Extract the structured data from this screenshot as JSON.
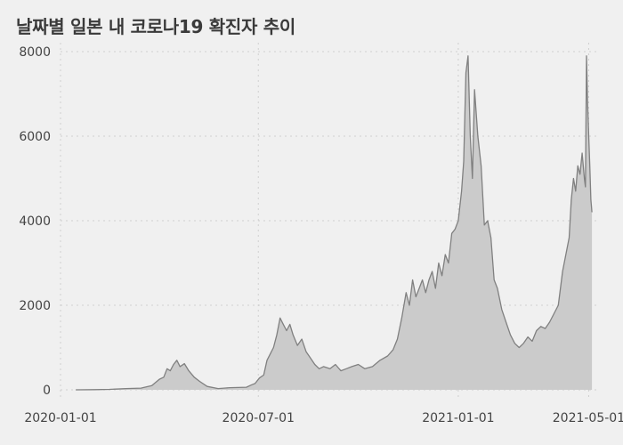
{
  "chart_data": {
    "type": "area",
    "title": "날짜별 일본 내 코로나19 확진자 추이",
    "xlabel": "",
    "ylabel": "",
    "x_range": [
      "2020-01-01",
      "2021-05-08"
    ],
    "ylim": [
      0,
      8000
    ],
    "y_ticks": [
      0,
      2000,
      4000,
      6000,
      8000
    ],
    "y_tick_labels": [
      "0",
      "2000",
      "4000",
      "6000",
      "8000"
    ],
    "x_ticks": [
      "2020-01-01",
      "2020-07-01",
      "2021-01-01",
      "2021-05-01"
    ],
    "x_tick_labels": [
      "2020-01-01",
      "2020-07-01",
      "2021-01-01",
      "2021-05-01"
    ],
    "grid": true,
    "colors": {
      "fill": "#cbcbcb",
      "line": "#808080",
      "grid": "#cfcfcf",
      "background": "#f0f0f0"
    },
    "series": [
      {
        "x": [
          "2020-01-15",
          "2020-02-01",
          "2020-02-15",
          "2020-03-01",
          "2020-03-15",
          "2020-03-25",
          "2020-04-01",
          "2020-04-05",
          "2020-04-08",
          "2020-04-11",
          "2020-04-14",
          "2020-04-17",
          "2020-04-20",
          "2020-04-24",
          "2020-04-28",
          "2020-05-03",
          "2020-05-08",
          "2020-05-15",
          "2020-05-25",
          "2020-06-05",
          "2020-06-20",
          "2020-06-25",
          "2020-06-28",
          "2020-07-02",
          "2020-07-06",
          "2020-07-09",
          "2020-07-12",
          "2020-07-15",
          "2020-07-18",
          "2020-07-21",
          "2020-07-24",
          "2020-07-27",
          "2020-07-30",
          "2020-08-02",
          "2020-08-06",
          "2020-08-10",
          "2020-08-14",
          "2020-08-18",
          "2020-08-22",
          "2020-08-26",
          "2020-08-30",
          "2020-09-05",
          "2020-09-10",
          "2020-09-15",
          "2020-09-20",
          "2020-09-25",
          "2020-10-01",
          "2020-10-07",
          "2020-10-14",
          "2020-10-21",
          "2020-10-28",
          "2020-11-02",
          "2020-11-06",
          "2020-11-10",
          "2020-11-14",
          "2020-11-17",
          "2020-11-20",
          "2020-11-23",
          "2020-11-26",
          "2020-11-29",
          "2020-12-02",
          "2020-12-05",
          "2020-12-08",
          "2020-12-11",
          "2020-12-14",
          "2020-12-17",
          "2020-12-20",
          "2020-12-23",
          "2020-12-26",
          "2020-12-29",
          "2021-01-01",
          "2021-01-04",
          "2021-01-06",
          "2021-01-08",
          "2021-01-10",
          "2021-01-12",
          "2021-01-14",
          "2021-01-16",
          "2021-01-19",
          "2021-01-22",
          "2021-01-25",
          "2021-01-28",
          "2021-01-31",
          "2021-02-03",
          "2021-02-06",
          "2021-02-10",
          "2021-02-14",
          "2021-02-18",
          "2021-02-22",
          "2021-02-26",
          "2021-03-02",
          "2021-03-06",
          "2021-03-10",
          "2021-03-14",
          "2021-03-18",
          "2021-03-22",
          "2021-03-26",
          "2021-03-30",
          "2021-04-03",
          "2021-04-07",
          "2021-04-10",
          "2021-04-13",
          "2021-04-15",
          "2021-04-17",
          "2021-04-19",
          "2021-04-21",
          "2021-04-23",
          "2021-04-25",
          "2021-04-27",
          "2021-04-28",
          "2021-04-29",
          "2021-04-30",
          "2021-05-01",
          "2021-05-02",
          "2021-05-03",
          "2021-05-04"
        ],
        "values": [
          0,
          5,
          10,
          30,
          40,
          100,
          250,
          300,
          500,
          450,
          600,
          700,
          550,
          620,
          450,
          300,
          200,
          80,
          30,
          50,
          60,
          120,
          150,
          280,
          350,
          700,
          850,
          1000,
          1300,
          1700,
          1550,
          1400,
          1550,
          1300,
          1050,
          1200,
          900,
          750,
          600,
          500,
          550,
          500,
          600,
          450,
          500,
          550,
          600,
          500,
          550,
          700,
          800,
          950,
          1200,
          1700,
          2300,
          2000,
          2600,
          2200,
          2400,
          2600,
          2300,
          2600,
          2800,
          2400,
          3000,
          2700,
          3200,
          3000,
          3700,
          3800,
          4000,
          4700,
          5400,
          7500,
          7900,
          6000,
          5000,
          7100,
          6000,
          5300,
          3900,
          4000,
          3600,
          2600,
          2400,
          1900,
          1600,
          1300,
          1100,
          1000,
          1100,
          1250,
          1150,
          1400,
          1500,
          1450,
          1600,
          1800,
          2000,
          2800,
          3200,
          3600,
          4500,
          5000,
          4700,
          5300,
          5100,
          5600,
          5000,
          4800,
          7900,
          6800,
          6000,
          5300,
          4500,
          4200
        ]
      }
    ]
  }
}
